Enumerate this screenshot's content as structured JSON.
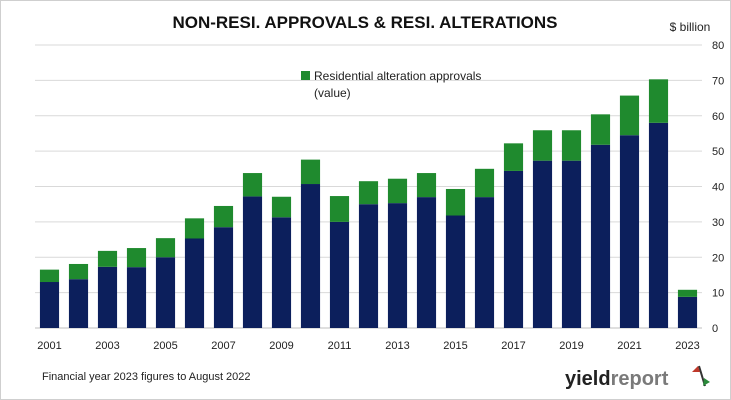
{
  "header": {
    "title": "NON-RESI. APPROVALS & RESI. ALTERATIONS",
    "unit": "$ billion"
  },
  "footnote": "Financial year 2023 figures to August 2022",
  "brand": {
    "part1": "yield",
    "part2": "report",
    "part3": "%",
    "colors": {
      "part1": "#222222",
      "part2": "#7a7a7a",
      "pct_top": "#c0392b",
      "pct_bottom": "#2a8a3a"
    }
  },
  "colors": {
    "non_residential": "#0c1f5c",
    "residential_alterations": "#1f8a2e",
    "grid": "#d9d9d9"
  },
  "chart_data": {
    "type": "bar",
    "stacked": true,
    "title": "NON-RESI. APPROVALS & RESI. ALTERATIONS",
    "ylabel": "$ billion",
    "ylim": [
      0,
      80
    ],
    "yticks": [
      0,
      10,
      20,
      30,
      40,
      50,
      60,
      70,
      80
    ],
    "y_axis_side": "right",
    "grid": true,
    "legend_position": "top-center",
    "categories": [
      "2001",
      "2002",
      "2003",
      "2004",
      "2005",
      "2006",
      "2007",
      "2008",
      "2009",
      "2010",
      "2011",
      "2012",
      "2013",
      "2014",
      "2015",
      "2016",
      "2017",
      "2018",
      "2019",
      "2020",
      "2021",
      "2022",
      "2023"
    ],
    "x_tick_labels": [
      "2001",
      "",
      "2003",
      "",
      "2005",
      "",
      "2007",
      "",
      "2009",
      "",
      "2011",
      "",
      "2013",
      "",
      "2015",
      "",
      "2017",
      "",
      "2019",
      "",
      "2021",
      "",
      "2023"
    ],
    "series": [
      {
        "key": "non_residential",
        "values": [
          13,
          13.8,
          17.3,
          17.2,
          20,
          25.3,
          28.5,
          37.2,
          31.3,
          40.7,
          30,
          35,
          35.3,
          37,
          31.8,
          37,
          44.4,
          47.3,
          47.3,
          51.8,
          54.5,
          58,
          8.8
        ]
      },
      {
        "name": "Residential alteration approvals (value)",
        "key": "residential_alterations",
        "values": [
          3.5,
          4.3,
          4.5,
          5.4,
          5.4,
          5.7,
          6,
          6.6,
          5.8,
          6.9,
          7.3,
          6.5,
          6.9,
          6.8,
          7.5,
          8,
          7.8,
          8.6,
          8.6,
          8.6,
          11.2,
          12.3,
          2
        ]
      }
    ],
    "legend": {
      "line1": "Residential alteration approvals",
      "line2": "(value)"
    }
  }
}
